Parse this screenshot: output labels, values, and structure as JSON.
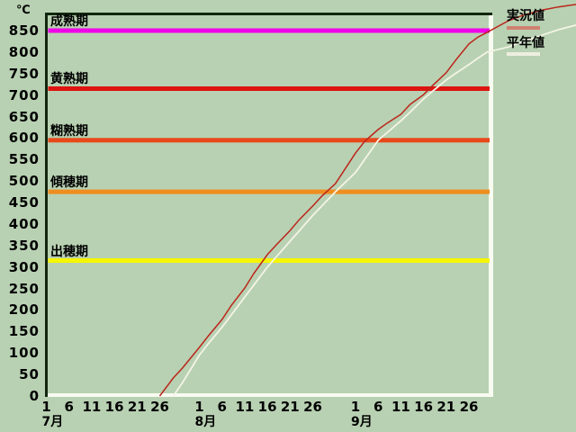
{
  "window": {
    "background": "#b8d1b2"
  },
  "chart_data": {
    "type": "line",
    "title": "",
    "xlabel": "",
    "ylabel": "℃",
    "y_axis": {
      "unit": "℃",
      "min": 0,
      "max": 850,
      "tick_step": 50
    },
    "x_axis": {
      "months": [
        {
          "label": "7月",
          "tick_days": [
            "1",
            "6",
            "11",
            "16",
            "21",
            "26"
          ]
        },
        {
          "label": "8月",
          "tick_days": [
            "1",
            "6",
            "11",
            "16",
            "21",
            "26"
          ]
        },
        {
          "label": "9月",
          "tick_days": [
            "1",
            "6",
            "11",
            "16",
            "21",
            "26"
          ]
        }
      ]
    },
    "grid": false,
    "legend_position": "top-right-outside",
    "thresholds": [
      {
        "label": "成熟期",
        "value": 850,
        "color": "#f000e8"
      },
      {
        "label": "黄熟期",
        "value": 715,
        "color": "#dd1410"
      },
      {
        "label": "糊熟期",
        "value": 595,
        "color": "#e8481a"
      },
      {
        "label": "傾穂期",
        "value": 475,
        "color": "#ef8e1e"
      },
      {
        "label": "出穂期",
        "value": 315,
        "color": "#f6f600"
      }
    ],
    "series": [
      {
        "name": "実況値",
        "color": "#bb241a",
        "swatch": "#cf8270",
        "points": [
          [
            0,
            26,
            0
          ],
          [
            0,
            28,
            28
          ],
          [
            0,
            29,
            42
          ],
          [
            0,
            31,
            65
          ],
          [
            1,
            1,
            113
          ],
          [
            1,
            3,
            140
          ],
          [
            1,
            6,
            178
          ],
          [
            1,
            8,
            210
          ],
          [
            1,
            11,
            251
          ],
          [
            1,
            13,
            285
          ],
          [
            1,
            16,
            329
          ],
          [
            1,
            18,
            352
          ],
          [
            1,
            21,
            385
          ],
          [
            1,
            23,
            410
          ],
          [
            1,
            26,
            442
          ],
          [
            1,
            28,
            465
          ],
          [
            1,
            31,
            494
          ],
          [
            2,
            1,
            565
          ],
          [
            2,
            3,
            592
          ],
          [
            2,
            6,
            620
          ],
          [
            2,
            8,
            635
          ],
          [
            2,
            11,
            655
          ],
          [
            2,
            13,
            678
          ],
          [
            2,
            16,
            701
          ],
          [
            2,
            18,
            722
          ],
          [
            2,
            21,
            752
          ],
          [
            2,
            23,
            780
          ],
          [
            2,
            26,
            819
          ],
          [
            2,
            28,
            835
          ],
          [
            2,
            30,
            846
          ],
          [
            3,
            1,
            873
          ],
          [
            3,
            4,
            885
          ],
          [
            3,
            8,
            897
          ],
          [
            3,
            12,
            905
          ],
          [
            3,
            16,
            911
          ]
        ]
      },
      {
        "name": "平年値",
        "color": "#f4f4e6",
        "swatch": "#eeeee0",
        "points": [
          [
            0,
            29,
            0
          ],
          [
            0,
            31,
            31
          ],
          [
            1,
            1,
            95
          ],
          [
            1,
            3,
            122
          ],
          [
            1,
            6,
            160
          ],
          [
            1,
            8,
            188
          ],
          [
            1,
            11,
            230
          ],
          [
            1,
            13,
            258
          ],
          [
            1,
            16,
            300
          ],
          [
            1,
            18,
            324
          ],
          [
            1,
            21,
            360
          ],
          [
            1,
            23,
            384
          ],
          [
            1,
            26,
            420
          ],
          [
            1,
            28,
            442
          ],
          [
            1,
            31,
            475
          ],
          [
            2,
            1,
            520
          ],
          [
            2,
            3,
            550
          ],
          [
            2,
            6,
            595
          ],
          [
            2,
            8,
            613
          ],
          [
            2,
            11,
            640
          ],
          [
            2,
            13,
            660
          ],
          [
            2,
            16,
            691
          ],
          [
            2,
            18,
            709
          ],
          [
            2,
            21,
            735
          ],
          [
            2,
            23,
            750
          ],
          [
            2,
            26,
            771
          ],
          [
            2,
            28,
            786
          ],
          [
            2,
            30,
            800
          ],
          [
            3,
            1,
            812
          ],
          [
            3,
            4,
            824
          ],
          [
            3,
            8,
            838
          ],
          [
            3,
            12,
            852
          ],
          [
            3,
            16,
            863
          ]
        ]
      }
    ]
  }
}
